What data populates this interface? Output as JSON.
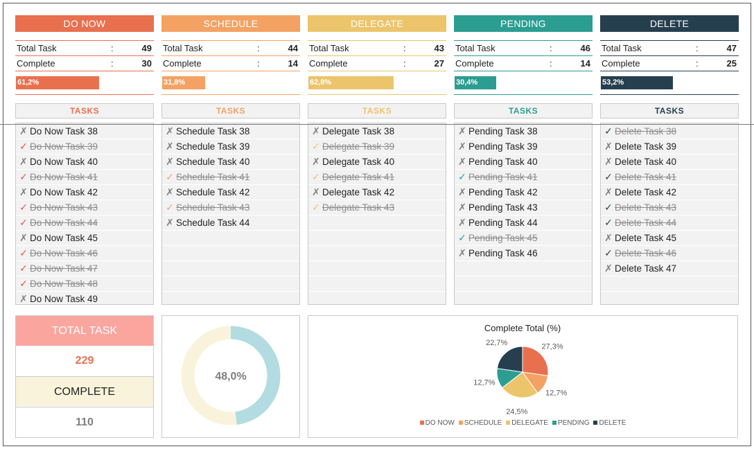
{
  "colors": {
    "do_now": "#e8704f",
    "schedule": "#f3a263",
    "delegate": "#ebc46c",
    "pending": "#2b9d91",
    "delete": "#263f4f",
    "check_complete": "#e2583e"
  },
  "categories": [
    {
      "key": "do_now",
      "title": "DO NOW",
      "color": "#e8704f",
      "total_label": "Total Task",
      "total": "49",
      "complete_label": "Complete",
      "complete": "30",
      "colon": ":",
      "progress_text": "61,2%",
      "progress_fraction": 0.612,
      "tasks_header": "TASKS",
      "tasks": [
        {
          "name": "Do Now Task 38",
          "done": false
        },
        {
          "name": "Do Now Task 39",
          "done": true
        },
        {
          "name": "Do Now Task 40",
          "done": false
        },
        {
          "name": "Do Now Task 41",
          "done": true
        },
        {
          "name": "Do Now Task 42",
          "done": false
        },
        {
          "name": "Do Now Task 43",
          "done": true
        },
        {
          "name": "Do Now Task 44",
          "done": true
        },
        {
          "name": "Do Now Task 45",
          "done": false
        },
        {
          "name": "Do Now Task 46",
          "done": true
        },
        {
          "name": "Do Now Task 47",
          "done": true
        },
        {
          "name": "Do Now Task 48",
          "done": true
        },
        {
          "name": "Do Now Task 49",
          "done": false
        }
      ]
    },
    {
      "key": "schedule",
      "title": "SCHEDULE",
      "color": "#f3a263",
      "total_label": "Total Task",
      "total": "44",
      "complete_label": "Complete",
      "complete": "14",
      "colon": ":",
      "progress_text": "31,8%",
      "progress_fraction": 0.318,
      "tasks_header": "TASKS",
      "tasks": [
        {
          "name": "Schedule Task 38",
          "done": false
        },
        {
          "name": "Schedule Task 39",
          "done": false
        },
        {
          "name": "Schedule Task 40",
          "done": false
        },
        {
          "name": "Schedule Task 41",
          "done": true
        },
        {
          "name": "Schedule Task 42",
          "done": false
        },
        {
          "name": "Schedule Task 43",
          "done": true
        },
        {
          "name": "Schedule Task 44",
          "done": false
        }
      ]
    },
    {
      "key": "delegate",
      "title": "DELEGATE",
      "color": "#ebc46c",
      "total_label": "Total Task",
      "total": "43",
      "complete_label": "Complete",
      "complete": "27",
      "colon": ":",
      "progress_text": "62,8%",
      "progress_fraction": 0.628,
      "tasks_header": "TASKS",
      "tasks": [
        {
          "name": "Delegate Task 38",
          "done": false
        },
        {
          "name": "Delegate Task 39",
          "done": true
        },
        {
          "name": "Delegate Task 40",
          "done": false
        },
        {
          "name": "Delegate Task 41",
          "done": true
        },
        {
          "name": "Delegate Task 42",
          "done": false
        },
        {
          "name": "Delegate Task 43",
          "done": true
        }
      ]
    },
    {
      "key": "pending",
      "title": "PENDING",
      "color": "#2b9d91",
      "total_label": "Total Task",
      "total": "46",
      "complete_label": "Complete",
      "complete": "14",
      "colon": ":",
      "progress_text": "30,4%",
      "progress_fraction": 0.304,
      "tasks_header": "TASKS",
      "tasks": [
        {
          "name": "Pending Task 38",
          "done": false
        },
        {
          "name": "Pending Task 39",
          "done": false
        },
        {
          "name": "Pending Task 40",
          "done": false
        },
        {
          "name": "Pending Task 41",
          "done": true
        },
        {
          "name": "Pending Task 42",
          "done": false
        },
        {
          "name": "Pending Task 43",
          "done": false
        },
        {
          "name": "Pending Task 44",
          "done": false
        },
        {
          "name": "Pending Task 45",
          "done": true
        },
        {
          "name": "Pending Task 46",
          "done": false
        }
      ]
    },
    {
      "key": "delete",
      "title": "DELETE",
      "color": "#263f4f",
      "total_label": "Total Task",
      "total": "47",
      "complete_label": "Complete",
      "complete": "25",
      "colon": ":",
      "progress_text": "53,2%",
      "progress_fraction": 0.532,
      "tasks_header": "TASKS",
      "tasks": [
        {
          "name": "Delete Task 38",
          "done": true
        },
        {
          "name": "Delete Task 39",
          "done": false
        },
        {
          "name": "Delete Task 40",
          "done": false
        },
        {
          "name": "Delete Task 41",
          "done": true
        },
        {
          "name": "Delete Task 42",
          "done": false
        },
        {
          "name": "Delete Task 43",
          "done": true
        },
        {
          "name": "Delete Task 44",
          "done": true
        },
        {
          "name": "Delete Task 45",
          "done": false
        },
        {
          "name": "Delete Task 46",
          "done": true
        },
        {
          "name": "Delete Task 47",
          "done": false
        }
      ]
    }
  ],
  "icons": {
    "open": "x-mark-icon",
    "done": "check-mark-icon"
  },
  "summary": {
    "total_label": "TOTAL TASK",
    "total_value": "229",
    "complete_label": "COMPLETE",
    "complete_value": "110",
    "total_label_bg": "#fba59f",
    "complete_label_bg": "#faf3dc"
  },
  "donut": {
    "label": "48,0%",
    "fraction": 0.48,
    "fill_color": "#b2dce2",
    "rest_color": "#faf3dc"
  },
  "chart_data": {
    "type": "pie",
    "title": "Complete Total (%)",
    "categories": [
      "DO NOW",
      "SCHEDULE",
      "DELEGATE",
      "PENDING",
      "DELETE"
    ],
    "values": [
      27.3,
      12.7,
      24.5,
      12.7,
      22.7
    ],
    "labels": [
      "27,3%",
      "12,7%",
      "24,5%",
      "12,7%",
      "22,7%"
    ],
    "colors": [
      "#e8704f",
      "#f3a263",
      "#ebc46c",
      "#2b9d91",
      "#263f4f"
    ],
    "legend_position": "bottom"
  }
}
